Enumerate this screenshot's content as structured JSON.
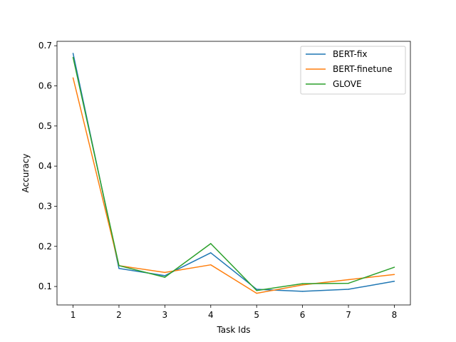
{
  "chart_data": {
    "type": "line",
    "title": "",
    "xlabel": "Task Ids",
    "ylabel": "Accuracy",
    "x": [
      1,
      2,
      3,
      4,
      5,
      6,
      7,
      8
    ],
    "xlim": [
      0.65,
      8.35
    ],
    "ylim": [
      0.054,
      0.711
    ],
    "xticks": [
      1,
      2,
      3,
      4,
      5,
      6,
      7,
      8
    ],
    "yticks": [
      0.1,
      0.2,
      0.3,
      0.4,
      0.5,
      0.6,
      0.7
    ],
    "grid": false,
    "legend_position": "upper right",
    "series": [
      {
        "name": "BERT-fix",
        "color": "#1f77b4",
        "values": [
          0.681,
          0.145,
          0.127,
          0.184,
          0.093,
          0.088,
          0.093,
          0.113
        ]
      },
      {
        "name": "BERT-finetune",
        "color": "#ff7f0e",
        "values": [
          0.62,
          0.152,
          0.135,
          0.154,
          0.083,
          0.104,
          0.117,
          0.13
        ]
      },
      {
        "name": "GLOVE",
        "color": "#2ca02c",
        "values": [
          0.671,
          0.152,
          0.123,
          0.207,
          0.09,
          0.107,
          0.108,
          0.148
        ]
      }
    ]
  }
}
